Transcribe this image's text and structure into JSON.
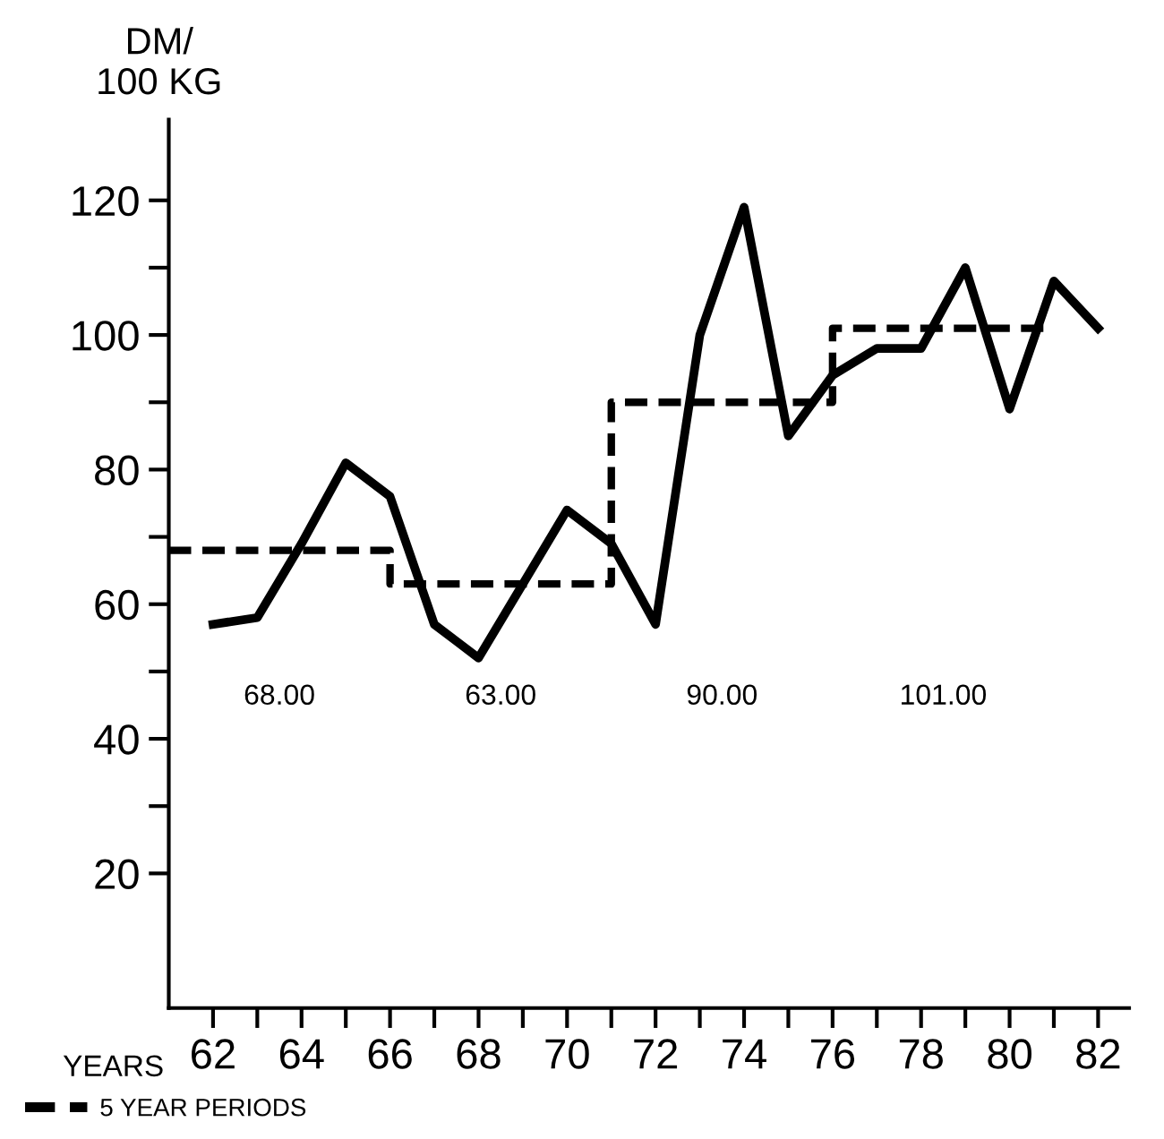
{
  "chart_data": {
    "type": "line",
    "ylabel": "DM/\n100 KG",
    "xlabel": "YEARS",
    "xlim": [
      61,
      82.7
    ],
    "ylim": [
      0,
      132
    ],
    "xticks": [
      62,
      {
        "value": 63,
        "label": null
      },
      64,
      {
        "value": 65,
        "label": null
      },
      66,
      {
        "value": 67,
        "label": null
      },
      68,
      {
        "value": 69,
        "label": null
      },
      70,
      {
        "value": 71,
        "label": null
      },
      72,
      {
        "value": 73,
        "label": null
      },
      74,
      {
        "value": 75,
        "label": null
      },
      76,
      {
        "value": 77,
        "label": null
      },
      78,
      {
        "value": 79,
        "label": null
      },
      80,
      {
        "value": 81,
        "label": null
      },
      82
    ],
    "yticks": [
      20,
      {
        "value": 30,
        "label": null
      },
      40,
      {
        "value": 50,
        "label": null
      },
      60,
      {
        "value": 70,
        "label": null
      },
      80,
      {
        "value": 90,
        "label": null
      },
      100,
      {
        "value": 110,
        "label": null
      },
      120
    ],
    "series": [
      {
        "color": "#000000",
        "line_style": "solid",
        "x": [
          62,
          63,
          64,
          65,
          66,
          67,
          68,
          69,
          70,
          71,
          72,
          73,
          74,
          75,
          76,
          77,
          78,
          79,
          80,
          81,
          82
        ],
        "values": [
          57,
          58,
          69,
          81,
          76,
          57,
          52,
          63,
          74,
          69,
          57,
          100,
          119,
          85,
          94,
          98,
          98,
          110,
          89,
          108,
          101
        ]
      },
      {
        "name": "5 YEAR PERIODS",
        "type": "step",
        "color": "#000000",
        "line_style": "dashed",
        "x": [
          61,
          66,
          71,
          76,
          81
        ],
        "values": [
          68,
          63,
          90,
          101,
          101
        ]
      }
    ],
    "annotations": [
      "68.00",
      "63.00",
      "90.00",
      "101.00"
    ],
    "legend": "bottom left",
    "grid": false
  }
}
